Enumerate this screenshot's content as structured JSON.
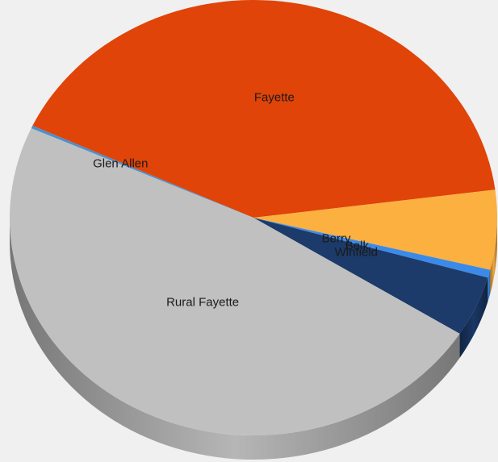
{
  "chart_data": {
    "type": "pie",
    "style": "3d",
    "start_angle_deg": 205,
    "legend": "none",
    "slices": [
      {
        "name": "Fayette",
        "value": 41.0,
        "color": "#e04408"
      },
      {
        "name": "Berry",
        "value": 5.9,
        "color": "#fbb040"
      },
      {
        "name": "Belk",
        "value": 0.6,
        "color": "#3c8ae8"
      },
      {
        "name": "Winfield",
        "value": 4.5,
        "color": "#1c3a6a"
      },
      {
        "name": "Rural Fayette",
        "value": 47.8,
        "color": "#c0c0c0"
      },
      {
        "name": "Glen Allen",
        "value": 0.2,
        "color": "#4a90d0"
      }
    ]
  }
}
